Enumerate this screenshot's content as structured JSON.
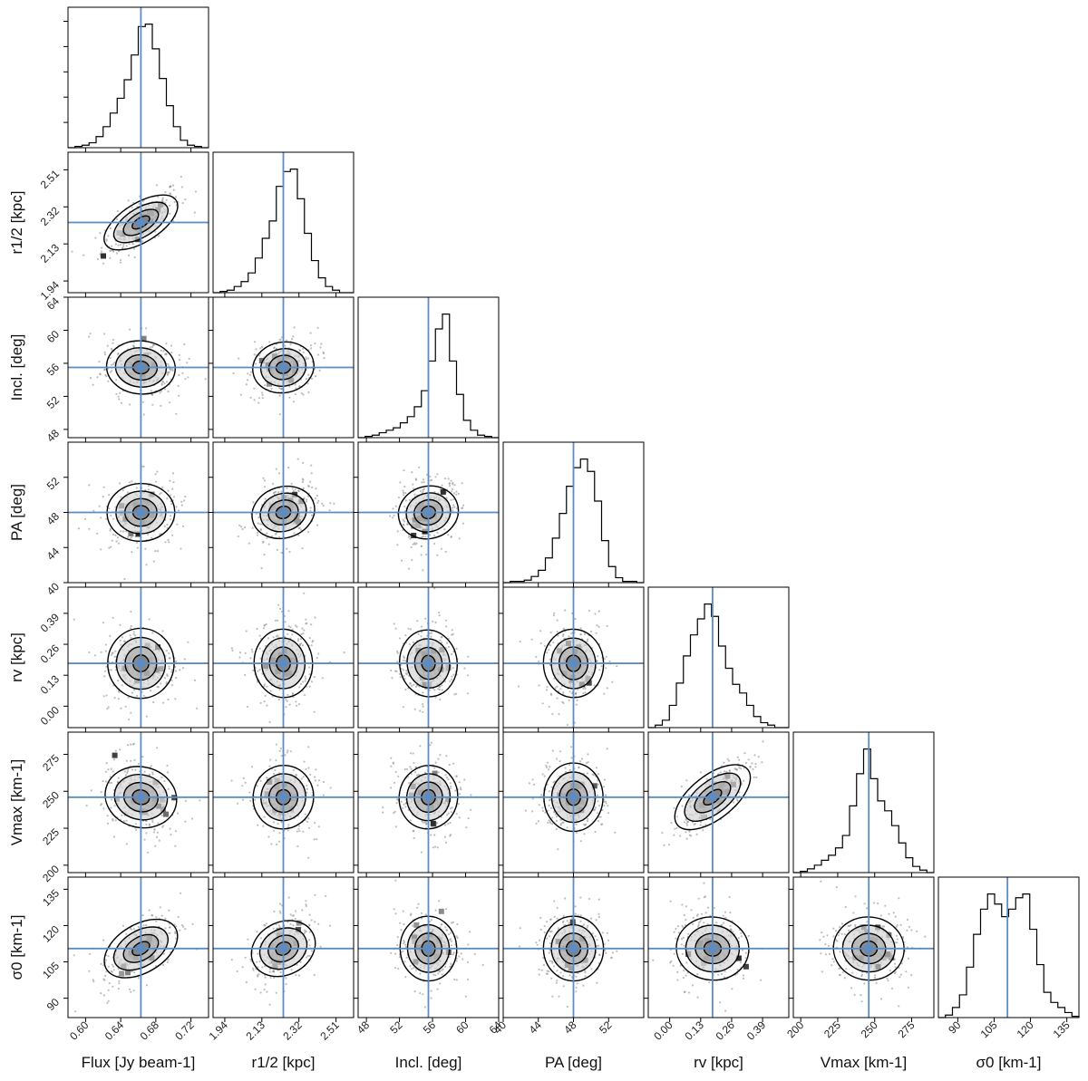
{
  "chart_data": {
    "type": "corner",
    "parameters": [
      {
        "label": "Flux [Jy beam-1]",
        "range": [
          0.58,
          0.74
        ],
        "ticks": [
          0.6,
          0.64,
          0.68,
          0.72
        ],
        "tick_labels": [
          "0.60",
          "0.64",
          "0.68",
          "0.72"
        ],
        "truth": 0.663,
        "sd": 0.018
      },
      {
        "label": "r1/2 [kpc]",
        "range": [
          1.88,
          2.6
        ],
        "ticks": [
          1.94,
          2.13,
          2.32,
          2.51
        ],
        "tick_labels": [
          "1.94",
          "2.13",
          "2.32",
          "2.51"
        ],
        "truth": 2.24,
        "sd": 0.07
      },
      {
        "label": "Incl. [deg]",
        "range": [
          47,
          64
        ],
        "ticks": [
          48,
          52,
          56,
          60,
          64
        ],
        "tick_labels": [
          "48",
          "52",
          "56",
          "60",
          "64"
        ],
        "truth": 55.5,
        "sd": 1.6
      },
      {
        "label": "PA [deg]",
        "range": [
          40,
          56
        ],
        "ticks": [
          40,
          44,
          48,
          52
        ],
        "tick_labels": [
          "40",
          "44",
          "48",
          "52"
        ],
        "truth": 48.0,
        "sd": 1.6
      },
      {
        "label": "rv [kpc]",
        "range": [
          -0.09,
          0.5
        ],
        "ticks": [
          0.0,
          0.13,
          0.26,
          0.39
        ],
        "tick_labels": [
          "0.00",
          "0.13",
          "0.26",
          "0.39"
        ],
        "truth": 0.18,
        "sd": 0.07
      },
      {
        "label": "Vmax [km-1]",
        "range": [
          195,
          290
        ],
        "ticks": [
          200,
          225,
          250,
          275
        ],
        "tick_labels": [
          "200",
          "225",
          "250",
          "275"
        ],
        "truth": 246,
        "sd": 11
      },
      {
        "label": "σ0 [km-1]",
        "range": [
          82,
          140
        ],
        "ticks": [
          90,
          105,
          120,
          135
        ],
        "tick_labels": [
          "90",
          "105",
          "120",
          "135"
        ],
        "truth": 110.5,
        "sd": 6.5
      }
    ],
    "histograms": [
      [
        0,
        1,
        2,
        4,
        9,
        17,
        28,
        40,
        55,
        75,
        98,
        100,
        80,
        56,
        34,
        17,
        6,
        2,
        1,
        0
      ],
      [
        0,
        1,
        2,
        5,
        9,
        16,
        28,
        44,
        58,
        86,
        98,
        100,
        76,
        48,
        26,
        12,
        5,
        2,
        0,
        0
      ],
      [
        0,
        1,
        2,
        4,
        6,
        8,
        12,
        17,
        25,
        38,
        62,
        88,
        100,
        62,
        35,
        14,
        6,
        2,
        1,
        0
      ],
      [
        0,
        1,
        1,
        2,
        5,
        10,
        20,
        36,
        56,
        78,
        93,
        100,
        90,
        66,
        34,
        13,
        4,
        1,
        1,
        0
      ],
      [
        0,
        2,
        6,
        18,
        36,
        58,
        75,
        88,
        100,
        90,
        66,
        48,
        35,
        28,
        18,
        9,
        4,
        2,
        0,
        0
      ],
      [
        0,
        1,
        3,
        6,
        10,
        14,
        20,
        30,
        54,
        80,
        100,
        76,
        58,
        50,
        38,
        24,
        12,
        5,
        2,
        0
      ],
      [
        0,
        2,
        8,
        18,
        40,
        66,
        86,
        98,
        90,
        80,
        86,
        95,
        98,
        70,
        42,
        20,
        12,
        8,
        4,
        1
      ]
    ],
    "correlations": {
      "1-0": 0.72,
      "2-0": -0.1,
      "2-1": 0.2,
      "3-0": 0.05,
      "3-1": 0.3,
      "3-2": 0.25,
      "4-0": 0.0,
      "4-1": 0.05,
      "4-2": 0.1,
      "4-3": 0.05,
      "5-0": -0.25,
      "5-1": -0.15,
      "5-2": -0.15,
      "5-3": 0.0,
      "5-4": 0.8,
      "6-0": 0.6,
      "6-1": 0.45,
      "6-2": 0.05,
      "6-3": 0.05,
      "6-4": -0.1,
      "6-5": -0.1
    },
    "line_color": "#5b8cc5",
    "contour_color": "#000000"
  }
}
